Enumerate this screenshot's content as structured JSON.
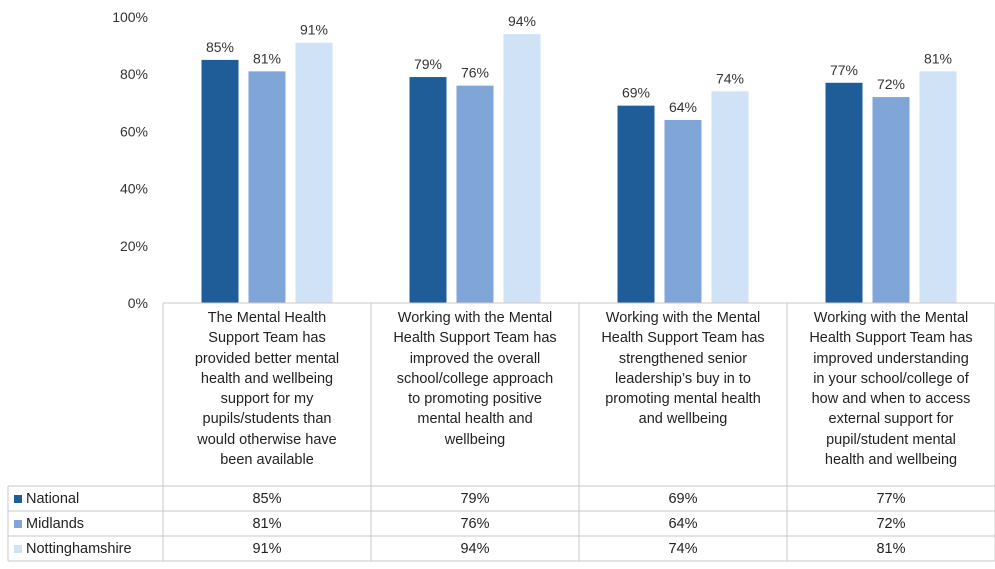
{
  "colors": {
    "national": "#1f5d99",
    "midlands": "#7fa6d6",
    "nottinghamshire": "#cfe2f6",
    "grid": "#c8c8c8"
  },
  "chart_data": {
    "type": "bar",
    "categories": [
      "The Mental Health Support Team has provided better mental health and wellbeing support for my pupils/students than would otherwise have been available",
      "Working with the Mental Health Support Team has improved the overall school/college approach to promoting positive mental health and wellbeing",
      "Working with the Mental Health Support Team has strengthened senior leadership’s buy in to promoting mental health and wellbeing",
      "Working with the Mental Health Support Team has improved understanding in your school/college of how and when to access external support for pupil/student mental health and wellbeing"
    ],
    "category_lines": [
      [
        "The Mental Health",
        "Support Team has",
        "provided better mental",
        "health and wellbeing",
        "support for my",
        "pupils/students than",
        "would otherwise have",
        "been available"
      ],
      [
        "Working with the Mental",
        "Health Support Team has",
        "improved the overall",
        "school/college approach",
        "to promoting positive",
        "mental health and",
        "wellbeing"
      ],
      [
        "Working with the Mental",
        "Health Support Team has",
        "strengthened senior",
        "leadership’s buy in to",
        "promoting mental health",
        "and wellbeing"
      ],
      [
        "Working with the Mental",
        "Health Support Team has",
        "improved understanding",
        "in your school/college of",
        "how and when to access",
        "external support for",
        "pupil/student mental",
        "health and wellbeing"
      ]
    ],
    "series": [
      {
        "name": "National",
        "values": [
          85,
          79,
          69,
          77
        ],
        "labels": [
          "85%",
          "79%",
          "69%",
          "77%"
        ]
      },
      {
        "name": "Midlands",
        "values": [
          81,
          76,
          64,
          72
        ],
        "labels": [
          "81%",
          "76%",
          "64%",
          "72%"
        ]
      },
      {
        "name": "Nottinghamshire",
        "values": [
          91,
          94,
          74,
          81
        ],
        "labels": [
          "91%",
          "94%",
          "74%",
          "81%"
        ]
      }
    ],
    "ylim": [
      0,
      100
    ],
    "yticks": [
      "0%",
      "20%",
      "40%",
      "60%",
      "80%",
      "100%"
    ],
    "legend_position": "bottom-left data table"
  }
}
